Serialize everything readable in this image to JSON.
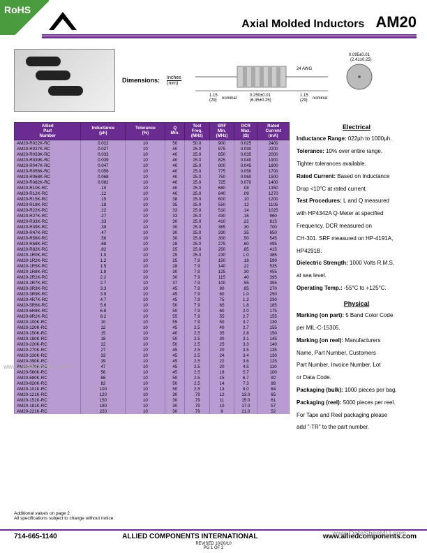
{
  "badge": "RoHS",
  "header": {
    "subtitle": "Axial Molded Inductors",
    "family": "AM20"
  },
  "dimensions": {
    "label": "Dimensions:",
    "unit_top": "Inches",
    "unit_bot": "(mm)",
    "wire": "24 AWG",
    "lead": "1.15",
    "lead_mm": "(29)",
    "nominal": "nominal",
    "body_l": "0.250±0.01",
    "body_l_mm": "(6.35±0.25)",
    "dia": "0.095±0.01",
    "dia_mm": "(2.41±0.25)"
  },
  "table": {
    "headers": [
      "Allied\nPart\nNumber",
      "Inductance\n(µh)",
      "Tolerance\n(%)",
      "Q\nMin.",
      "Test\nFreq.\n(MHz)",
      "SRF\nMin.\n(MHz)",
      "DCR\nMax.\n(Ω)",
      "Rated\nCurrent\n(mA)"
    ],
    "rows": [
      [
        "AM20-R022K-RC",
        "0.022",
        "10",
        "50",
        "50.0",
        "900",
        "0.025",
        "2400"
      ],
      [
        "AM20-R027K-RC",
        "0.027",
        "10",
        "40",
        "25.0",
        "875",
        "0.030",
        "2200"
      ],
      [
        "AM20-R033K-RC",
        "0.033",
        "10",
        "40",
        "25.0",
        "850",
        "0.035",
        "2000"
      ],
      [
        "AM20-R039K-RC",
        "0.039",
        "10",
        "40",
        "25.0",
        "825",
        "0.040",
        "1900"
      ],
      [
        "AM20-R047K-RC",
        "0.047",
        "10",
        "40",
        "25.0",
        "800",
        "0.045",
        "1800"
      ],
      [
        "AM20-R056K-RC",
        "0.056",
        "10",
        "40",
        "25.0",
        "775",
        "0.050",
        "1700"
      ],
      [
        "AM20-R068K-RC",
        "0.068",
        "10",
        "40",
        "25.0",
        "750",
        "0.060",
        "1500"
      ],
      [
        "AM20-R082K-RC",
        "0.082",
        "10",
        "40",
        "25.0",
        "725",
        "0.070",
        "1400"
      ],
      [
        "AM20-R10K-RC",
        ".10",
        "10",
        "40",
        "25.0",
        "680",
        ".08",
        "1350"
      ],
      [
        "AM20-R12K-RC",
        ".12",
        "10",
        "40",
        "25.0",
        "640",
        ".09",
        "1270"
      ],
      [
        "AM20-R15K-RC",
        ".15",
        "10",
        "38",
        "25.0",
        "600",
        ".10",
        "1200"
      ],
      [
        "AM20-R18K-RC",
        ".18",
        "10",
        "35",
        "25.0",
        "550",
        ".12",
        "1105"
      ],
      [
        "AM20-R22K-RC",
        ".22",
        "10",
        "33",
        "25.0",
        "510",
        ".14",
        "1025"
      ],
      [
        "AM20-R27K-RC",
        ".27",
        "10",
        "33",
        "25.0",
        "430",
        ".16",
        "960"
      ],
      [
        "AM20-R33K-RC",
        ".33",
        "10",
        "30",
        "25.0",
        "410",
        ".22",
        "815"
      ],
      [
        "AM20-R39K-RC",
        ".39",
        "10",
        "30",
        "25.0",
        "365",
        ".30",
        "700"
      ],
      [
        "AM20-R47K-RC",
        ".47",
        "10",
        "30",
        "25.0",
        "330",
        ".35",
        "650"
      ],
      [
        "AM20-R56K-RC",
        ".56",
        "10",
        "30",
        "25.0",
        "300",
        ".50",
        "545"
      ],
      [
        "AM20-R68K-RC",
        ".68",
        "10",
        "28",
        "25.0",
        "275",
        ".60",
        "495"
      ],
      [
        "AM20-R82K-RC",
        ".82",
        "10",
        "25",
        "25.0",
        "250",
        ".85",
        "415"
      ],
      [
        "AM20-1R0K-RC",
        "1.0",
        "10",
        "25",
        "25.0",
        "230",
        "1.0",
        "385"
      ],
      [
        "AM20-1R2K-RC",
        "1.2",
        "10",
        "25",
        "7.9",
        "150",
        ".18",
        "590"
      ],
      [
        "AM20-1R5K-RC",
        "1.5",
        "10",
        "28",
        "7.9",
        "140",
        ".22",
        "535"
      ],
      [
        "AM20-1R8K-RC",
        "1.8",
        "10",
        "30",
        "7.9",
        "125",
        ".30",
        "455"
      ],
      [
        "AM20-2R2K-RC",
        "2.2",
        "10",
        "30",
        "7.9",
        "115",
        ".40",
        "395"
      ],
      [
        "AM20-2R7K-RC",
        "2.7",
        "10",
        "37",
        "7.9",
        "100",
        ".55",
        "355"
      ],
      [
        "AM20-3R3K-RC",
        "3.3",
        "10",
        "45",
        "7.9",
        "90",
        ".85",
        "270"
      ],
      [
        "AM20-3R9K-RC",
        "3.9",
        "10",
        "45",
        "7.9",
        "80",
        "1.0",
        "250"
      ],
      [
        "AM20-4R7K-RC",
        "4.7",
        "10",
        "45",
        "7.9",
        "75",
        "1.2",
        "230"
      ],
      [
        "AM20-5R6K-RC",
        "5.6",
        "10",
        "50",
        "7.9",
        "65",
        "1.8",
        "185"
      ],
      [
        "AM20-6R8K-RC",
        "6.8",
        "10",
        "50",
        "7.9",
        "60",
        "2.0",
        "175"
      ],
      [
        "AM20-8R2K-RC",
        "8.2",
        "10",
        "55",
        "7.9",
        "55",
        "2.7",
        "155"
      ],
      [
        "AM20-100K-RC",
        "10",
        "10",
        "55",
        "7.9",
        "50",
        "3.7",
        "130"
      ],
      [
        "AM20-120K-RC",
        "12",
        "10",
        "45",
        "2.5",
        "40",
        "2.7",
        "155"
      ],
      [
        "AM20-150K-RC",
        "15",
        "10",
        "40",
        "2.5",
        "35",
        "2.8",
        "150"
      ],
      [
        "AM20-180K-RC",
        "18",
        "10",
        "50",
        "2.5",
        "30",
        "3.1",
        "145"
      ],
      [
        "AM20-220K-RC",
        "22",
        "10",
        "50",
        "2.5",
        "25",
        "3.3",
        "140"
      ],
      [
        "AM20-270K-RC",
        "27",
        "10",
        "45",
        "2.5",
        "20",
        "3.5",
        "135"
      ],
      [
        "AM20-330K-RC",
        "33",
        "10",
        "45",
        "2.5",
        "24",
        "3.4",
        "130"
      ],
      [
        "AM20-390K-RC",
        "39",
        "10",
        "45",
        "2.5",
        "22",
        "3.6",
        "125"
      ],
      [
        "AM20-470K-RC",
        "47",
        "10",
        "45",
        "2.5",
        "20",
        "4.5",
        "110"
      ],
      [
        "AM20-560K-RC",
        "56",
        "10",
        "45",
        "2.5",
        "18",
        "5.7",
        "100"
      ],
      [
        "AM20-680K-RC",
        "68",
        "10",
        "50",
        "2.5",
        "15",
        "6.7",
        "92"
      ],
      [
        "AM20-820K-RC",
        "82",
        "10",
        "50",
        "2.5",
        "14",
        "7.3",
        "88"
      ],
      [
        "AM20-101K-RC",
        "100",
        "10",
        "50",
        "2.5",
        "13",
        "8.0",
        "84"
      ],
      [
        "AM20-121K-RC",
        "120",
        "10",
        "30",
        ".79",
        "12",
        "13.0",
        "65"
      ],
      [
        "AM20-151K-RC",
        "150",
        "10",
        "30",
        ".79",
        "11",
        "15.0",
        "61"
      ],
      [
        "AM20-181K-RC",
        "180",
        "10",
        "30",
        ".79",
        "10",
        "17.0",
        "57"
      ],
      [
        "AM20-221K-RC",
        "220",
        "10",
        "30",
        ".79",
        "9",
        "21.0",
        "52"
      ]
    ]
  },
  "electrical": {
    "heading": "Electrical",
    "ind_range_l": "Inductance Range:",
    "ind_range_v": "022µh to 1000µh.",
    "tol_l": "Tolerance:",
    "tol_v": "10% over entire range.",
    "tol_note": "Tighter tolerances available.",
    "rated_l": "Rated Current:",
    "rated_v": "Based on Inductance",
    "rated_note": "Drop <10°C at rated current.",
    "test_l": "Test Procedures:",
    "test_v": "L and Q measured",
    "test_l2": "with HP4342A Q-Meter at specified",
    "test_l3": "Frequency.  DCR measured on",
    "test_l4": "CH-301. SRF measured on HP-4191A,",
    "test_l5": "HP4291B.",
    "diel_l": "Dielectric Strength:",
    "diel_v": "1000 Volts R.M.S.",
    "diel_note": "at sea level.",
    "temp_l": "Operating Temp.:",
    "temp_v": "-55°C to +125°C."
  },
  "physical": {
    "heading": "Physical",
    "mark_part_l": "Marking (on part):",
    "mark_part_v": "5 Band Color Code",
    "mark_part_note": "per MIL-C-15305.",
    "mark_reel_l": "Marking (on reel):",
    "mark_reel_v": "Manufacturers",
    "mark_reel_l2": "Name, Part Number, Customers",
    "mark_reel_l3": "Part Number, Invoice Number, Lot",
    "mark_reel_l4": "or Data Code.",
    "pkg_bulk_l": "Packaging (bulk):",
    "pkg_bulk_v": "1000 pieces per bag.",
    "pkg_reel_l": "Packaging (reel):",
    "pkg_reel_v": "5000 pieces per reel.",
    "pkg_reel_l2": "For Tape and Reel packaging please",
    "pkg_reel_l3": "add \"-TR\" to the part number."
  },
  "notes": {
    "l1": "Additional values on page 2",
    "l2": "All specifications subject to change without notice."
  },
  "footer": {
    "phone": "714-665-1140",
    "company": "ALLIED COMPONENTS INTERNATIONAL",
    "url": "www.alliedcomponents.com",
    "rev": "REVISED 10/20/10",
    "page": "PG  1  OF  2"
  },
  "watermark": "www.DataSheet4U.com",
  "watermark2": "www.DataSheet4U.com"
}
